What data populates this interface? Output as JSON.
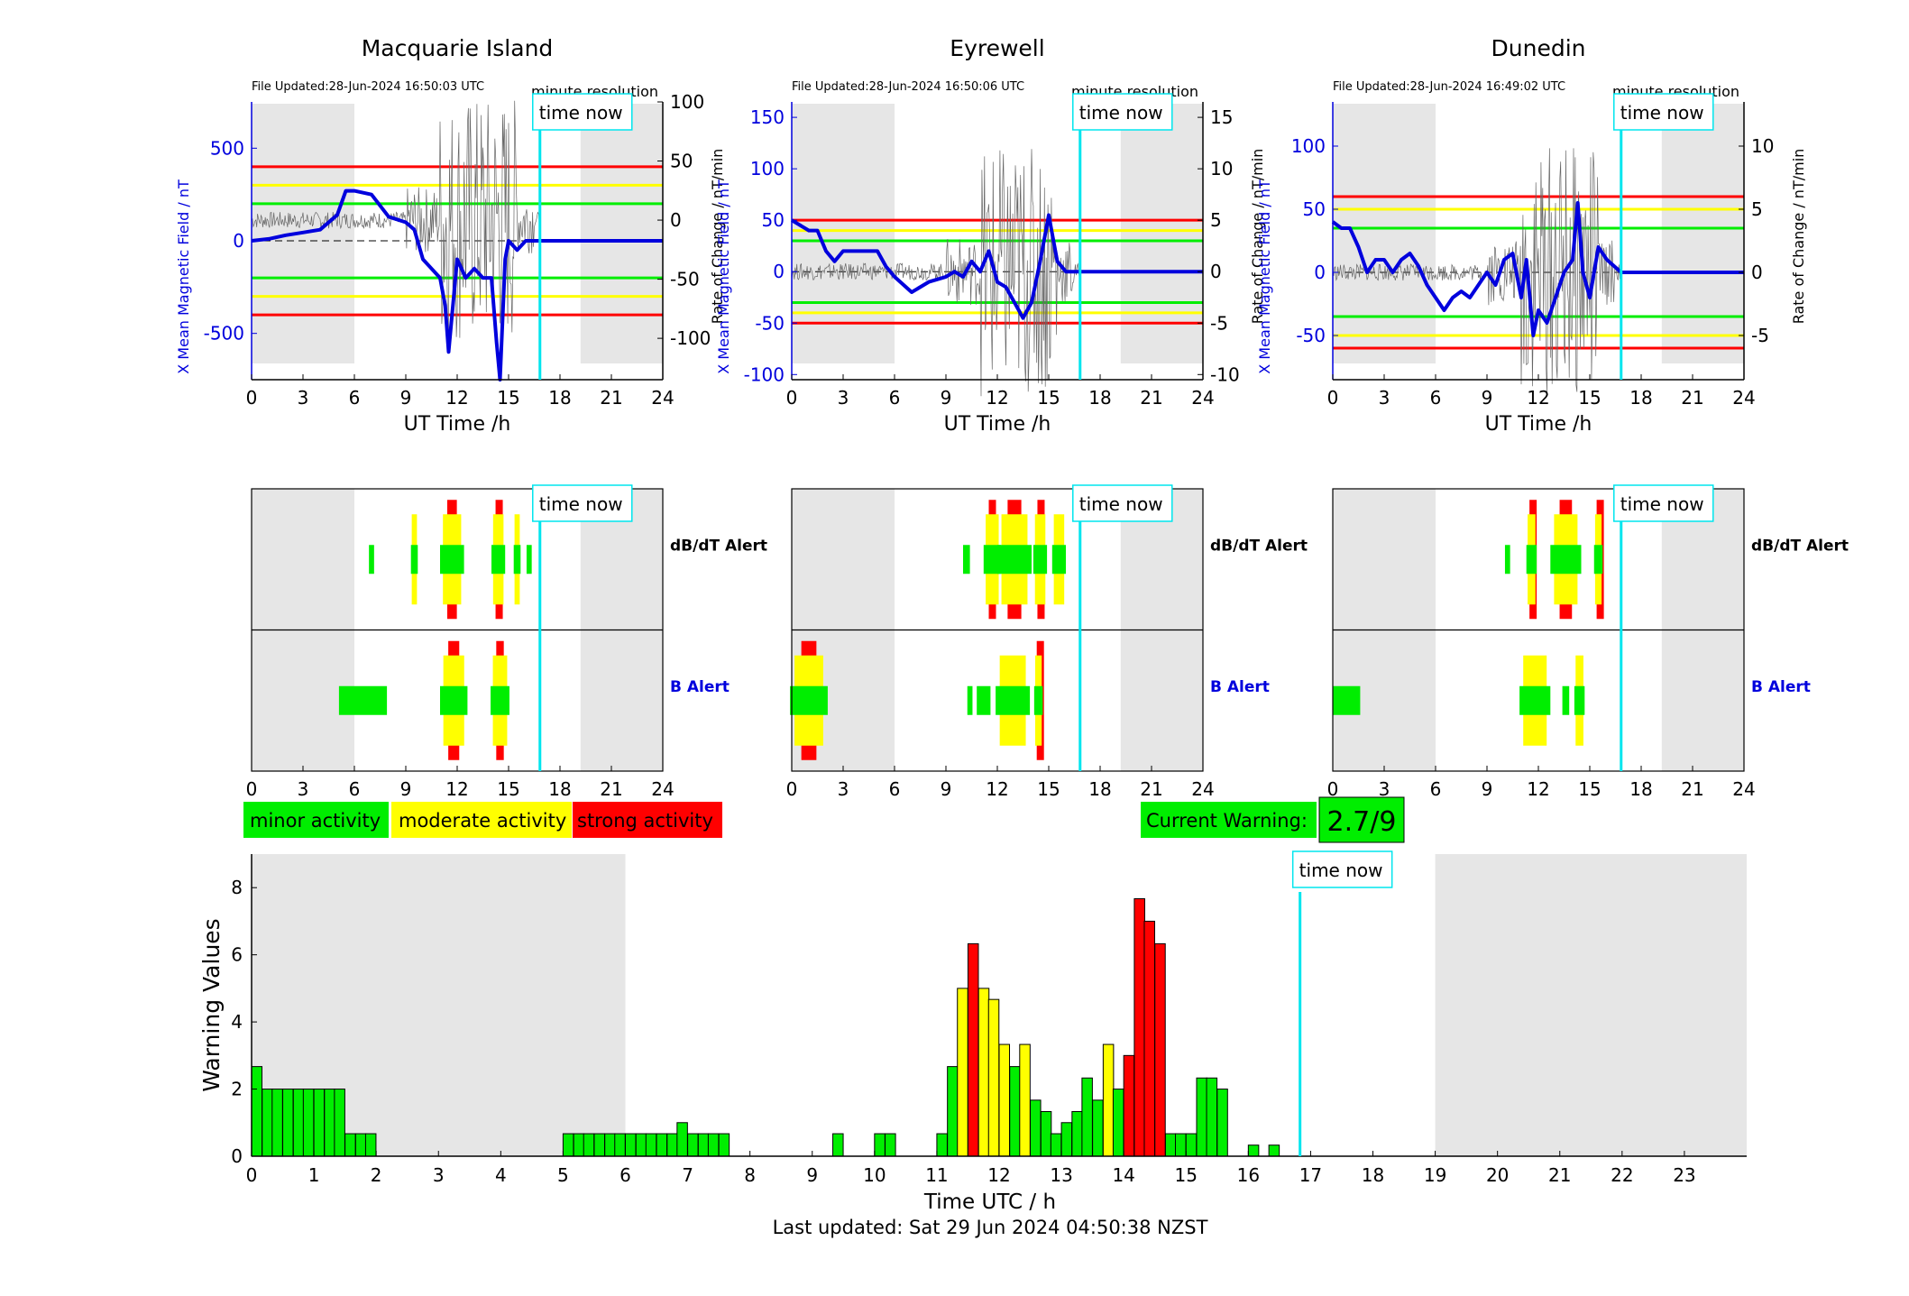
{
  "stations": [
    {
      "title": "Macquarie Island",
      "file_updated": "File Updated:28-Jun-2024 16:50:03 UTC",
      "resolution_label": "minute resolution",
      "time_now_label": "time now",
      "left_axis_label": "X Mean Magnetic Field / nT",
      "right_axis_label": "Rate of Change / nT/min",
      "xlabel": "UT Time /h",
      "dbdt_label": "dB/dT Alert",
      "b_label": "B Alert",
      "now_hour": 16.83,
      "shade": [
        [
          0,
          6
        ],
        [
          19.2,
          24
        ]
      ],
      "left_ylim": [
        -750,
        750
      ],
      "left_ticks": [
        500,
        0,
        -500
      ],
      "right_ylim": [
        -135,
        100
      ],
      "right_ticks": [
        100,
        50,
        0,
        -50,
        -100
      ],
      "thresholds": {
        "red": 400,
        "yellow": 300,
        "green": 200
      },
      "mean_field": [
        [
          0,
          0
        ],
        [
          1,
          10
        ],
        [
          2,
          30
        ],
        [
          3,
          45
        ],
        [
          4,
          60
        ],
        [
          5,
          140
        ],
        [
          5.5,
          270
        ],
        [
          6,
          270
        ],
        [
          7,
          250
        ],
        [
          8,
          130
        ],
        [
          9,
          100
        ],
        [
          9.5,
          60
        ],
        [
          10,
          -100
        ],
        [
          10.5,
          -150
        ],
        [
          11,
          -200
        ],
        [
          11.3,
          -350
        ],
        [
          11.5,
          -600
        ],
        [
          11.8,
          -300
        ],
        [
          12,
          -100
        ],
        [
          12.5,
          -200
        ],
        [
          13,
          -150
        ],
        [
          13.5,
          -200
        ],
        [
          14,
          -200
        ],
        [
          14.3,
          -550
        ],
        [
          14.5,
          -750
        ],
        [
          14.8,
          -100
        ],
        [
          15,
          0
        ],
        [
          15.5,
          -50
        ],
        [
          16,
          0
        ],
        [
          16.83,
          0
        ],
        [
          24,
          0
        ]
      ],
      "dbdt_alerts": [
        {
          "h": 7,
          "w": 0.3,
          "level": 1
        },
        {
          "h": 9.5,
          "w": 0.4,
          "level": 2
        },
        {
          "h": 11.7,
          "w": 1.4,
          "level": 3
        },
        {
          "h": 14.4,
          "w": 0.8,
          "level": 3
        },
        {
          "h": 15.5,
          "w": 0.4,
          "level": 2
        },
        {
          "h": 16.2,
          "w": 0.3,
          "level": 1
        }
      ],
      "b_alerts": [
        {
          "h": 6.5,
          "w": 2.8,
          "level": 1
        },
        {
          "h": 11.8,
          "w": 1.6,
          "level": 3
        },
        {
          "h": 14.5,
          "w": 1.1,
          "level": 3
        }
      ]
    },
    {
      "title": "Eyrewell",
      "file_updated": "File Updated:28-Jun-2024 16:50:06 UTC",
      "resolution_label": "minute resolution",
      "time_now_label": "time now",
      "left_axis_label": "X Mean Magnetic Field / nT",
      "right_axis_label": "Rate of Change / nT/min",
      "xlabel": "UT Time /h",
      "dbdt_label": "dB/dT Alert",
      "b_label": "B Alert",
      "now_hour": 16.83,
      "shade": [
        [
          0,
          6
        ],
        [
          19.2,
          24
        ]
      ],
      "left_ylim": [
        -105,
        165
      ],
      "left_ticks": [
        150,
        100,
        50,
        0,
        -50,
        -100
      ],
      "right_ylim": [
        -10.5,
        16.5
      ],
      "right_ticks": [
        15,
        10,
        5,
        0,
        -5,
        -10
      ],
      "thresholds": {
        "red": 50,
        "yellow": 40,
        "green": 30
      },
      "mean_field": [
        [
          0,
          50
        ],
        [
          0.5,
          45
        ],
        [
          1,
          40
        ],
        [
          1.5,
          40
        ],
        [
          2,
          20
        ],
        [
          2.5,
          10
        ],
        [
          3,
          20
        ],
        [
          4,
          20
        ],
        [
          5,
          20
        ],
        [
          5.5,
          5
        ],
        [
          6,
          -5
        ],
        [
          7,
          -20
        ],
        [
          8,
          -10
        ],
        [
          9,
          -5
        ],
        [
          9.5,
          0
        ],
        [
          10,
          -5
        ],
        [
          10.5,
          10
        ],
        [
          11,
          0
        ],
        [
          11.5,
          20
        ],
        [
          12,
          -10
        ],
        [
          12.5,
          -15
        ],
        [
          13,
          -30
        ],
        [
          13.5,
          -45
        ],
        [
          14,
          -30
        ],
        [
          14.5,
          10
        ],
        [
          15,
          55
        ],
        [
          15.5,
          10
        ],
        [
          16,
          0
        ],
        [
          16.83,
          0
        ],
        [
          24,
          0
        ]
      ],
      "dbdt_alerts": [
        {
          "h": 10.2,
          "w": 0.4,
          "level": 1
        },
        {
          "h": 11.7,
          "w": 1.0,
          "level": 3
        },
        {
          "h": 13.0,
          "w": 2.0,
          "level": 3
        },
        {
          "h": 14.5,
          "w": 0.8,
          "level": 3
        },
        {
          "h": 15.6,
          "w": 0.8,
          "level": 2
        }
      ],
      "b_alerts": [
        {
          "h": 1.0,
          "w": 2.2,
          "level": 3
        },
        {
          "h": 10.4,
          "w": 0.3,
          "level": 1
        },
        {
          "h": 11.2,
          "w": 0.8,
          "level": 1
        },
        {
          "h": 12.9,
          "w": 2.0,
          "level": 2
        },
        {
          "h": 14.4,
          "w": 0.5,
          "level": 3
        }
      ]
    },
    {
      "title": "Dunedin",
      "file_updated": "File Updated:28-Jun-2024 16:49:02 UTC",
      "resolution_label": "minute resolution",
      "time_now_label": "time now",
      "left_axis_label": "X Mean Magnetic Field / nT",
      "right_axis_label": "Rate of Change / nT/min",
      "xlabel": "UT Time /h",
      "dbdt_label": "dB/dT Alert",
      "b_label": "B Alert",
      "now_hour": 16.83,
      "shade": [
        [
          0,
          6
        ],
        [
          19.2,
          24
        ]
      ],
      "left_ylim": [
        -85,
        135
      ],
      "left_ticks": [
        100,
        50,
        0,
        -50
      ],
      "right_ylim": [
        -8.5,
        13.5
      ],
      "right_ticks": [
        10,
        5,
        0,
        -5
      ],
      "thresholds": {
        "red": 60,
        "yellow": 50,
        "green": 35
      },
      "mean_field": [
        [
          0,
          40
        ],
        [
          0.5,
          35
        ],
        [
          1,
          35
        ],
        [
          1.5,
          20
        ],
        [
          2,
          0
        ],
        [
          2.5,
          10
        ],
        [
          3,
          10
        ],
        [
          3.5,
          0
        ],
        [
          4,
          10
        ],
        [
          4.5,
          15
        ],
        [
          5,
          5
        ],
        [
          5.5,
          -10
        ],
        [
          6,
          -20
        ],
        [
          6.5,
          -30
        ],
        [
          7,
          -20
        ],
        [
          7.5,
          -15
        ],
        [
          8,
          -20
        ],
        [
          8.5,
          -10
        ],
        [
          9,
          0
        ],
        [
          9.5,
          -10
        ],
        [
          10,
          10
        ],
        [
          10.5,
          15
        ],
        [
          11,
          -20
        ],
        [
          11.3,
          10
        ],
        [
          11.7,
          -50
        ],
        [
          12,
          -30
        ],
        [
          12.5,
          -40
        ],
        [
          13,
          -20
        ],
        [
          13.5,
          0
        ],
        [
          14,
          10
        ],
        [
          14.3,
          55
        ],
        [
          14.6,
          0
        ],
        [
          15,
          -20
        ],
        [
          15.5,
          20
        ],
        [
          16,
          10
        ],
        [
          16.83,
          0
        ],
        [
          24,
          0
        ]
      ],
      "dbdt_alerts": [
        {
          "h": 10.2,
          "w": 0.3,
          "level": 1
        },
        {
          "h": 11.6,
          "w": 0.6,
          "level": 3
        },
        {
          "h": 13.6,
          "w": 1.8,
          "level": 3
        },
        {
          "h": 15.5,
          "w": 0.5,
          "level": 3
        }
      ],
      "b_alerts": [
        {
          "h": 0.8,
          "w": 1.6,
          "level": 1
        },
        {
          "h": 11.8,
          "w": 1.8,
          "level": 2
        },
        {
          "h": 13.6,
          "w": 0.4,
          "level": 1
        },
        {
          "h": 14.4,
          "w": 0.6,
          "level": 2
        }
      ]
    }
  ],
  "legend": {
    "minor": "minor activity",
    "moderate": "moderate activity",
    "strong": "strong activity"
  },
  "current_warning": {
    "label": "Current Warning:",
    "value": "2.7/9"
  },
  "colors": {
    "minor": "#00ee00",
    "moderate": "#ffff00",
    "strong": "#ff0000",
    "mean_field": "#0000dd",
    "now_line": "#00e5ee",
    "shade": "#e6e6e6"
  },
  "chart_data": {
    "type": "bar",
    "ylabel": "Warning Values",
    "xlabel": "Time UTC / h",
    "x_ticks": [
      "0",
      "1",
      "2",
      "3",
      "4",
      "5",
      "6",
      "7",
      "8",
      "9",
      "10",
      "11",
      "12",
      "13",
      "14",
      "15",
      "16",
      "17",
      "18",
      "19",
      "20",
      "21",
      "22",
      "23"
    ],
    "y_ticks": [
      "0",
      "2",
      "4",
      "6",
      "8"
    ],
    "xlim": [
      0,
      24
    ],
    "ylim": [
      0,
      9
    ],
    "bin_hours": 0.1667,
    "shade": [
      [
        0,
        6
      ],
      [
        19,
        24
      ]
    ],
    "time_now_label": "time now",
    "now_hour": 16.83,
    "bars": [
      {
        "t": 0.0,
        "v": 2.67,
        "level": 1
      },
      {
        "t": 0.17,
        "v": 2.0,
        "level": 1
      },
      {
        "t": 0.33,
        "v": 2.0,
        "level": 1
      },
      {
        "t": 0.5,
        "v": 2.0,
        "level": 1
      },
      {
        "t": 0.67,
        "v": 2.0,
        "level": 1
      },
      {
        "t": 0.83,
        "v": 2.0,
        "level": 1
      },
      {
        "t": 1.0,
        "v": 2.0,
        "level": 1
      },
      {
        "t": 1.17,
        "v": 2.0,
        "level": 1
      },
      {
        "t": 1.33,
        "v": 2.0,
        "level": 1
      },
      {
        "t": 1.5,
        "v": 0.67,
        "level": 1
      },
      {
        "t": 1.67,
        "v": 0.67,
        "level": 1
      },
      {
        "t": 1.83,
        "v": 0.67,
        "level": 1
      },
      {
        "t": 5.0,
        "v": 0.67,
        "level": 1
      },
      {
        "t": 5.17,
        "v": 0.67,
        "level": 1
      },
      {
        "t": 5.33,
        "v": 0.67,
        "level": 1
      },
      {
        "t": 5.5,
        "v": 0.67,
        "level": 1
      },
      {
        "t": 5.67,
        "v": 0.67,
        "level": 1
      },
      {
        "t": 5.83,
        "v": 0.67,
        "level": 1
      },
      {
        "t": 6.0,
        "v": 0.67,
        "level": 1
      },
      {
        "t": 6.17,
        "v": 0.67,
        "level": 1
      },
      {
        "t": 6.33,
        "v": 0.67,
        "level": 1
      },
      {
        "t": 6.5,
        "v": 0.67,
        "level": 1
      },
      {
        "t": 6.67,
        "v": 0.67,
        "level": 1
      },
      {
        "t": 6.83,
        "v": 1.0,
        "level": 1
      },
      {
        "t": 7.0,
        "v": 0.67,
        "level": 1
      },
      {
        "t": 7.17,
        "v": 0.67,
        "level": 1
      },
      {
        "t": 7.33,
        "v": 0.67,
        "level": 1
      },
      {
        "t": 7.5,
        "v": 0.67,
        "level": 1
      },
      {
        "t": 9.33,
        "v": 0.67,
        "level": 1
      },
      {
        "t": 10.0,
        "v": 0.67,
        "level": 1
      },
      {
        "t": 10.17,
        "v": 0.67,
        "level": 1
      },
      {
        "t": 11.0,
        "v": 0.67,
        "level": 1
      },
      {
        "t": 11.17,
        "v": 2.67,
        "level": 1
      },
      {
        "t": 11.33,
        "v": 5.0,
        "level": 2
      },
      {
        "t": 11.5,
        "v": 6.33,
        "level": 3
      },
      {
        "t": 11.67,
        "v": 5.0,
        "level": 2
      },
      {
        "t": 11.83,
        "v": 4.67,
        "level": 2
      },
      {
        "t": 12.0,
        "v": 3.33,
        "level": 2
      },
      {
        "t": 12.17,
        "v": 2.67,
        "level": 1
      },
      {
        "t": 12.33,
        "v": 3.33,
        "level": 2
      },
      {
        "t": 12.5,
        "v": 1.67,
        "level": 1
      },
      {
        "t": 12.67,
        "v": 1.33,
        "level": 1
      },
      {
        "t": 12.83,
        "v": 0.67,
        "level": 1
      },
      {
        "t": 13.0,
        "v": 1.0,
        "level": 1
      },
      {
        "t": 13.17,
        "v": 1.33,
        "level": 1
      },
      {
        "t": 13.33,
        "v": 2.33,
        "level": 1
      },
      {
        "t": 13.5,
        "v": 1.67,
        "level": 1
      },
      {
        "t": 13.67,
        "v": 3.33,
        "level": 2
      },
      {
        "t": 13.83,
        "v": 2.0,
        "level": 1
      },
      {
        "t": 14.0,
        "v": 3.0,
        "level": 3
      },
      {
        "t": 14.17,
        "v": 7.67,
        "level": 3
      },
      {
        "t": 14.33,
        "v": 7.0,
        "level": 3
      },
      {
        "t": 14.5,
        "v": 6.33,
        "level": 3
      },
      {
        "t": 14.67,
        "v": 0.67,
        "level": 1
      },
      {
        "t": 14.83,
        "v": 0.67,
        "level": 1
      },
      {
        "t": 15.0,
        "v": 0.67,
        "level": 1
      },
      {
        "t": 15.17,
        "v": 2.33,
        "level": 1
      },
      {
        "t": 15.33,
        "v": 2.33,
        "level": 1
      },
      {
        "t": 15.5,
        "v": 2.0,
        "level": 1
      },
      {
        "t": 16.0,
        "v": 0.33,
        "level": 1
      },
      {
        "t": 16.33,
        "v": 0.33,
        "level": 1
      }
    ]
  },
  "footer": "Last updated: Sat 29 Jun 2024 04:50:38 NZST"
}
